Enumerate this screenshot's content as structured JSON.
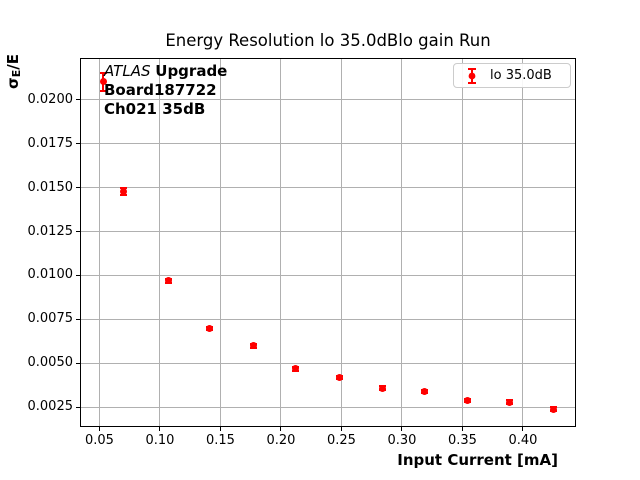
{
  "colors": {
    "series": "#ff0000",
    "grid": "#b0b0b0",
    "frame": "#000000",
    "legend_border": "#cccccc",
    "background": "#ffffff"
  },
  "annotation": {
    "experiment": "ATLAS",
    "upgrade": "Upgrade",
    "board": "Board187722",
    "channel": "Ch021 35dB"
  },
  "legend": {
    "label": "lo 35.0dB",
    "marker": "red-errorbar-point"
  },
  "chart_data": {
    "type": "scatter",
    "title": "Energy Resolution lo 35.0dBlo gain Run",
    "xlabel": "Input Current [mA]",
    "ylabel": "σE/E",
    "ylabel_parts": {
      "sigma": "σ",
      "sub": "E",
      "rest": "/E"
    },
    "xlim": [
      0.0339,
      0.4438
    ],
    "ylim": [
      0.00139,
      0.02236
    ],
    "grid": true,
    "legend_position": "upper right",
    "xticks": [
      "0.05",
      "0.10",
      "0.15",
      "0.20",
      "0.25",
      "0.30",
      "0.35",
      "0.40"
    ],
    "yticks": [
      "0.0025",
      "0.0050",
      "0.0075",
      "0.0100",
      "0.0125",
      "0.0150",
      "0.0175",
      "0.0200"
    ],
    "series": [
      {
        "name": "lo 35.0dB",
        "color": "#ff0000",
        "marker": "circle",
        "x": [
          0.053,
          0.07,
          0.107,
          0.141,
          0.177,
          0.212,
          0.248,
          0.284,
          0.319,
          0.354,
          0.389,
          0.425
        ],
        "y": [
          0.021,
          0.0148,
          0.0097,
          0.007,
          0.006,
          0.0047,
          0.0042,
          0.0036,
          0.0034,
          0.0029,
          0.0028,
          0.0024
        ],
        "yerr": [
          0.0005,
          0.0002,
          0.0001,
          0.0001,
          0.0001,
          0.0001,
          0.0001,
          0.0001,
          0.0001,
          0.0001,
          0.0001,
          0.0001
        ]
      }
    ]
  }
}
